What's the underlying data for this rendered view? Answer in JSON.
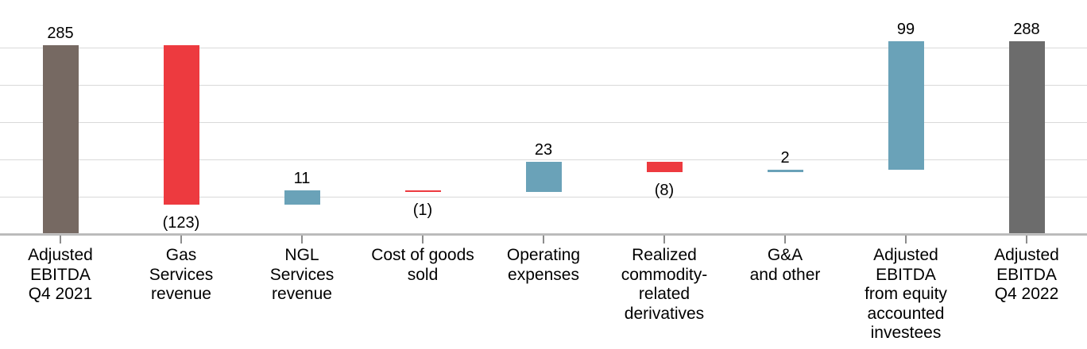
{
  "chart_data": {
    "type": "bar",
    "subtype": "waterfall",
    "title": "",
    "y_axis_labels_visible": false,
    "axis": {
      "ymin": 140,
      "ymax": 320,
      "gridlines": "horizontal, unlabeled, 5 lines above baseline"
    },
    "legend": "none",
    "colors": {
      "total_start": "#766962",
      "total_end": "#6C6C6C",
      "increase": "#6AA2B8",
      "decrease": "#ED3A3F",
      "gridline": "#D9D9D9",
      "axis_line": "#B5B5B5",
      "tick": "#8C8C8C",
      "text": "#000000"
    },
    "bars": [
      {
        "category_lines": [
          "Adjusted",
          "EBITDA",
          "Q4 2021"
        ],
        "value": 285,
        "start": 0,
        "end": 285,
        "kind": "total",
        "color_key": "total_start",
        "data_label": "285",
        "label_position": "above"
      },
      {
        "category_lines": [
          "Gas",
          "Services",
          "revenue"
        ],
        "value": -123,
        "start": 285,
        "end": 162,
        "kind": "decrease",
        "color_key": "decrease",
        "data_label": "(123)",
        "label_position": "below"
      },
      {
        "category_lines": [
          "NGL",
          "Services",
          "revenue"
        ],
        "value": 11,
        "start": 162,
        "end": 173,
        "kind": "increase",
        "color_key": "increase",
        "data_label": "11",
        "label_position": "above"
      },
      {
        "category_lines": [
          "Cost of goods",
          "sold"
        ],
        "value": -1,
        "start": 173,
        "end": 172,
        "kind": "decrease",
        "color_key": "decrease",
        "data_label": "(1)",
        "label_position": "below"
      },
      {
        "category_lines": [
          "Operating",
          "expenses"
        ],
        "value": 23,
        "start": 172,
        "end": 195,
        "kind": "increase",
        "color_key": "increase",
        "data_label": "23",
        "label_position": "above"
      },
      {
        "category_lines": [
          "Realized",
          "commodity-",
          "related",
          "derivatives"
        ],
        "value": -8,
        "start": 195,
        "end": 187,
        "kind": "decrease",
        "color_key": "decrease",
        "data_label": "(8)",
        "label_position": "below"
      },
      {
        "category_lines": [
          "G&A",
          "and other"
        ],
        "value": 2,
        "start": 187,
        "end": 189,
        "kind": "increase",
        "color_key": "increase",
        "data_label": "2",
        "label_position": "above"
      },
      {
        "category_lines": [
          "Adjusted",
          "EBITDA",
          "from equity",
          "accounted",
          "investees"
        ],
        "value": 99,
        "start": 189,
        "end": 288,
        "kind": "increase",
        "color_key": "increase",
        "data_label": "99",
        "label_position": "above"
      },
      {
        "category_lines": [
          "Adjusted",
          "EBITDA",
          "Q4 2022"
        ],
        "value": 288,
        "start": 0,
        "end": 288,
        "kind": "total",
        "color_key": "total_end",
        "data_label": "288",
        "label_position": "above"
      }
    ]
  }
}
